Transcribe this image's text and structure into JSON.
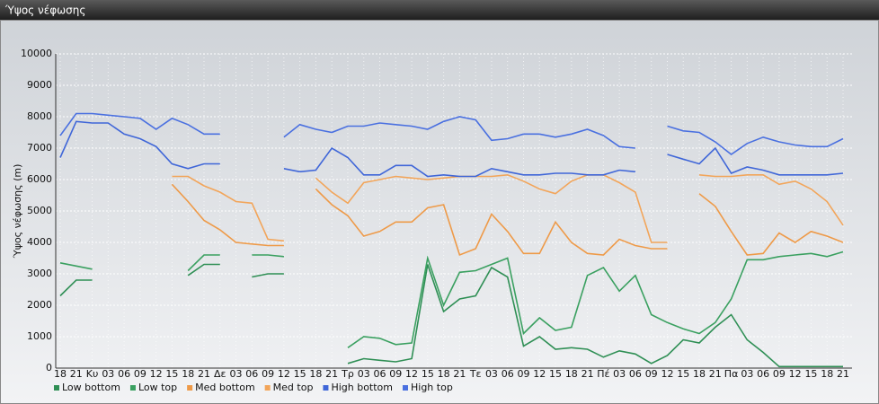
{
  "chart_data": {
    "type": "line",
    "title": "Ύψος νέφωσης",
    "y_label": "Ύψος νέφωσης (m)",
    "categories": [
      "18",
      "21",
      "Κυ",
      "03",
      "06",
      "09",
      "12",
      "15",
      "18",
      "21",
      "Δε",
      "03",
      "06",
      "09",
      "12",
      "15",
      "18",
      "21",
      "Τρ",
      "03",
      "06",
      "09",
      "12",
      "15",
      "18",
      "21",
      "Τε",
      "03",
      "06",
      "09",
      "12",
      "15",
      "18",
      "21",
      "Πέ",
      "03",
      "06",
      "09",
      "12",
      "15",
      "18",
      "21",
      "Πα",
      "03",
      "06",
      "09",
      "12",
      "15",
      "18",
      "21"
    ],
    "ylim": [
      0,
      10000
    ],
    "yticks": [
      0,
      1000,
      2000,
      3000,
      4000,
      5000,
      6000,
      7000,
      8000,
      9000,
      10000
    ],
    "grid": true,
    "series": [
      {
        "name": "Low bottom",
        "color": "#2f8f55",
        "values": [
          2300,
          2800,
          2800,
          null,
          null,
          null,
          null,
          null,
          2950,
          3300,
          3300,
          null,
          2900,
          3000,
          3000,
          null,
          null,
          null,
          150,
          300,
          250,
          200,
          300,
          3300,
          1800,
          2200,
          2300,
          3200,
          2900,
          700,
          1000,
          600,
          650,
          600,
          350,
          550,
          450,
          150,
          400,
          900,
          800,
          1300,
          1700,
          900,
          500,
          50,
          50,
          50,
          50,
          50
        ]
      },
      {
        "name": "Low top",
        "color": "#3aa060",
        "values": [
          3350,
          3250,
          3150,
          null,
          null,
          null,
          null,
          null,
          3100,
          3600,
          3600,
          null,
          3600,
          3600,
          3550,
          null,
          null,
          null,
          650,
          1000,
          950,
          750,
          800,
          3500,
          2000,
          3050,
          3100,
          3300,
          3500,
          1100,
          1600,
          1200,
          1300,
          2950,
          3200,
          2450,
          2950,
          1700,
          1450,
          1250,
          1100,
          1450,
          2200,
          3450,
          3450,
          3550,
          3600,
          3650,
          3550,
          3700
        ]
      },
      {
        "name": "Med bottom",
        "color": "#ee9a48",
        "values": [
          null,
          null,
          null,
          null,
          null,
          null,
          null,
          5850,
          5300,
          4700,
          4400,
          4000,
          3950,
          3900,
          3900,
          null,
          5700,
          5200,
          4850,
          4200,
          4350,
          4650,
          4650,
          5100,
          5200,
          3600,
          3800,
          4900,
          4350,
          3650,
          3650,
          4650,
          4000,
          3650,
          3600,
          4100,
          3900,
          3800,
          3800,
          null,
          5550,
          5150,
          4350,
          3600,
          3650,
          4300,
          4000,
          4350,
          4200,
          4000
        ]
      },
      {
        "name": "Med top",
        "color": "#f2a55a",
        "values": [
          null,
          null,
          null,
          null,
          null,
          null,
          null,
          6100,
          6100,
          5800,
          5600,
          5300,
          5250,
          4100,
          4050,
          null,
          6050,
          5600,
          5250,
          5900,
          6000,
          6100,
          6050,
          6000,
          6050,
          6100,
          6100,
          6100,
          6150,
          5950,
          5700,
          5550,
          5950,
          6150,
          6150,
          5900,
          5600,
          4000,
          4000,
          null,
          6150,
          6100,
          6100,
          6150,
          6150,
          5850,
          5950,
          5700,
          5300,
          4550
        ]
      },
      {
        "name": "High bottom",
        "color": "#3f66d8",
        "values": [
          6700,
          7850,
          7800,
          7800,
          7450,
          7300,
          7050,
          6500,
          6350,
          6500,
          6500,
          null,
          null,
          null,
          6350,
          6250,
          6300,
          7000,
          6700,
          6150,
          6150,
          6450,
          6450,
          6100,
          6150,
          6100,
          6100,
          6350,
          6250,
          6150,
          6150,
          6200,
          6200,
          6150,
          6150,
          6300,
          6250,
          null,
          6800,
          6650,
          6500,
          7000,
          6200,
          6400,
          6300,
          6150,
          6150,
          6150,
          6150,
          6200
        ]
      },
      {
        "name": "High top",
        "color": "#4a70e0",
        "values": [
          7400,
          8100,
          8100,
          8050,
          8000,
          7950,
          7600,
          7950,
          7750,
          7450,
          7450,
          null,
          null,
          null,
          7350,
          7750,
          7600,
          7500,
          7700,
          7700,
          7800,
          7750,
          7700,
          7600,
          7850,
          8000,
          7900,
          7250,
          7300,
          7450,
          7450,
          7350,
          7450,
          7600,
          7400,
          7050,
          7000,
          null,
          7700,
          7550,
          7500,
          7200,
          6800,
          7150,
          7350,
          7200,
          7100,
          7050,
          7050,
          7300
        ]
      }
    ]
  }
}
